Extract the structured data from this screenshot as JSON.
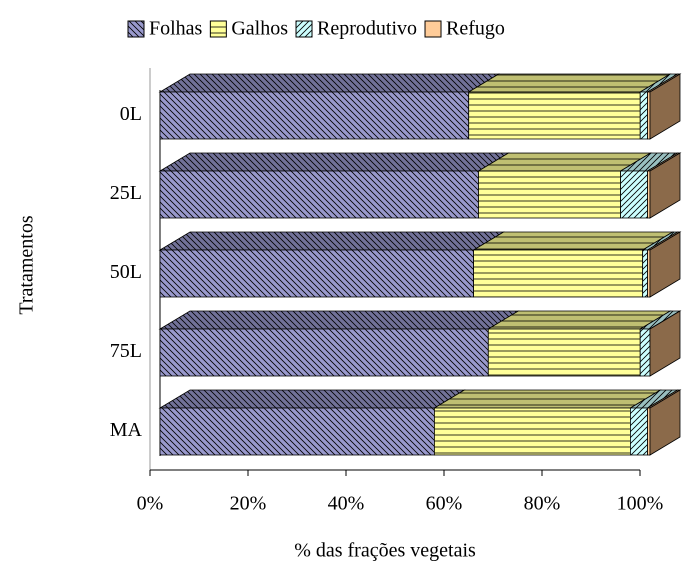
{
  "chart_data": {
    "type": "bar3d_stacked_h",
    "categories": [
      "0L",
      "25L",
      "50L",
      "75L",
      "MA"
    ],
    "series": [
      {
        "name": "Folhas",
        "color": "#9999cc",
        "pattern": "diagonal-down",
        "values": [
          63,
          65,
          64,
          67,
          56
        ]
      },
      {
        "name": "Galhos",
        "color": "#ffff99",
        "pattern": "horizontal",
        "values": [
          35,
          29,
          34.5,
          31,
          40
        ]
      },
      {
        "name": "Reprodutivo",
        "color": "#ccffff",
        "pattern": "diagonal-up",
        "values": [
          1.5,
          5.5,
          1,
          2,
          3.5
        ]
      },
      {
        "name": "Refugo",
        "color": "#ffcc99",
        "pattern": "none",
        "values": [
          0.5,
          0.5,
          0.5,
          0,
          0.5
        ]
      }
    ],
    "xlim": [
      0,
      100
    ],
    "xticks": [
      {
        "value": 0,
        "label": "0%"
      },
      {
        "value": 20,
        "label": "20%"
      },
      {
        "value": 40,
        "label": "40%"
      },
      {
        "value": 60,
        "label": "60%"
      },
      {
        "value": 80,
        "label": "80%"
      },
      {
        "value": 100,
        "label": "100%"
      }
    ],
    "xlabel": "% das frações vegetais",
    "ylabel": "Tratamentos",
    "legend": "top"
  }
}
